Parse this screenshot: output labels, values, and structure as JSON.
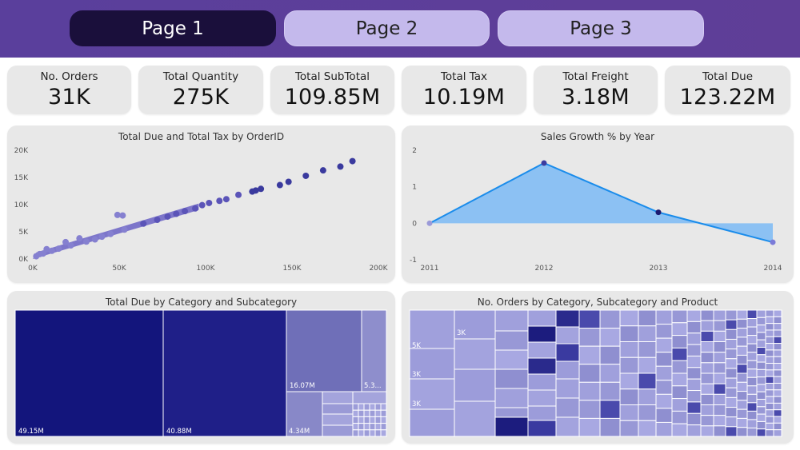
{
  "tabs": [
    {
      "label": "Page 1",
      "active": true
    },
    {
      "label": "Page 2",
      "active": false
    },
    {
      "label": "Page 3",
      "active": false
    }
  ],
  "kpis": [
    {
      "label": "No. Orders",
      "value": "31K"
    },
    {
      "label": "Total Quantity",
      "value": "275K"
    },
    {
      "label": "Total SubTotal",
      "value": "109.85M"
    },
    {
      "label": "Total Tax",
      "value": "10.19M"
    },
    {
      "label": "Total Freight",
      "value": "3.18M"
    },
    {
      "label": "Total Due",
      "value": "123.22M"
    }
  ],
  "colors": {
    "header": "#5a3f9c",
    "tab_active": "#1a0f3b",
    "tab_inactive": "#c4b9ec",
    "card": "#e8e8e8",
    "navy": "#14177f",
    "scatter": "#5b54b8",
    "line": "#1a8ceb",
    "area": "#82bcf4"
  },
  "chart_data": [
    {
      "type": "scatter",
      "title": "Total Due and Total Tax by OrderID",
      "x_ticks": [
        "0K",
        "50K",
        "100K",
        "150K",
        "200K"
      ],
      "y_ticks": [
        "0K",
        "5K",
        "10K",
        "15K",
        "20K"
      ],
      "xlim": [
        0,
        200000
      ],
      "ylim": [
        0,
        20000
      ],
      "points": [
        [
          185000,
          18000
        ],
        [
          178000,
          17000
        ],
        [
          168000,
          16300
        ],
        [
          158000,
          15300
        ],
        [
          148000,
          14200
        ],
        [
          143000,
          13600
        ],
        [
          132000,
          12900
        ],
        [
          129000,
          12600
        ],
        [
          127000,
          12400
        ],
        [
          119000,
          11800
        ],
        [
          112000,
          11000
        ],
        [
          108000,
          10700
        ],
        [
          102000,
          10300
        ],
        [
          98000,
          9900
        ],
        [
          94000,
          9300
        ],
        [
          88000,
          8800
        ],
        [
          83000,
          8300
        ],
        [
          78000,
          7800
        ],
        [
          72000,
          7200
        ],
        [
          64000,
          6500
        ],
        [
          53000,
          5400
        ],
        [
          52000,
          8000
        ],
        [
          49000,
          8100
        ],
        [
          45000,
          4600
        ],
        [
          40000,
          4100
        ],
        [
          36000,
          3600
        ],
        [
          31000,
          3200
        ],
        [
          27000,
          3800
        ],
        [
          22000,
          2500
        ],
        [
          19000,
          3100
        ],
        [
          15000,
          1900
        ],
        [
          11000,
          1500
        ],
        [
          8000,
          1800
        ],
        [
          6000,
          1000
        ],
        [
          4000,
          900
        ],
        [
          2000,
          500
        ]
      ]
    },
    {
      "type": "line",
      "title": "Sales Growth % by Year",
      "x": [
        "2011",
        "2012",
        "2013",
        "2014"
      ],
      "values": [
        0,
        1.65,
        0.3,
        -0.52
      ],
      "y_ticks": [
        "2",
        "1",
        "0",
        "-1"
      ],
      "ylim": [
        -1,
        2
      ]
    },
    {
      "type": "treemap",
      "title": "Total Due by Category and Subcategory",
      "labels": [
        "49.15M",
        "40.88M",
        "16.07M",
        "5.3...",
        "4.34M"
      ]
    },
    {
      "type": "treemap",
      "title": "No. Orders by Category, Subcategory and Product",
      "labels": [
        "5K",
        "3K",
        "3K",
        "3K"
      ]
    }
  ]
}
